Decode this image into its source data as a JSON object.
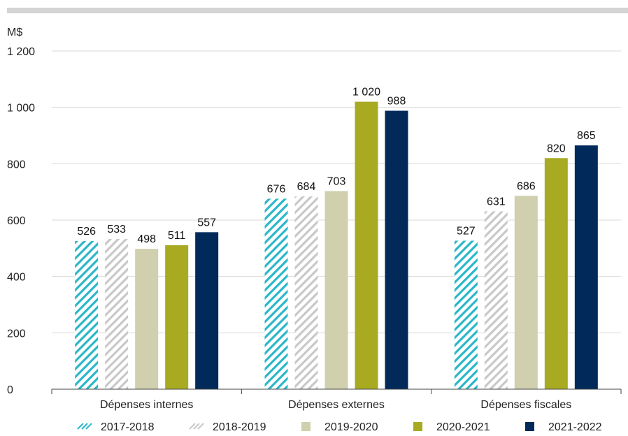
{
  "chart_data": {
    "type": "bar",
    "ylabel": "M$",
    "ylim": [
      0,
      1200
    ],
    "yticks": [
      0,
      200,
      400,
      600,
      800,
      1000,
      1200
    ],
    "ytick_labels": [
      "0",
      "200",
      "400",
      "600",
      "800",
      "1 000",
      "1 200"
    ],
    "grid": true,
    "legend_position": "bottom",
    "categories": [
      "Dépenses internes",
      "Dépenses externes",
      "Dépenses fiscales"
    ],
    "series": [
      {
        "name": "2017-2018",
        "values": [
          526,
          676,
          527
        ],
        "labels": [
          "526",
          "676",
          "527"
        ],
        "color": "#2ab7c8",
        "pattern": "hatch"
      },
      {
        "name": "2018-2019",
        "values": [
          533,
          684,
          631
        ],
        "labels": [
          "533",
          "684",
          "631"
        ],
        "color": "#c8c8c8",
        "pattern": "hatch"
      },
      {
        "name": "2019-2020",
        "values": [
          498,
          703,
          686
        ],
        "labels": [
          "498",
          "703",
          "686"
        ],
        "color": "#d0cfae",
        "pattern": "solid"
      },
      {
        "name": "2020-2021",
        "values": [
          511,
          1020,
          820
        ],
        "labels": [
          "511",
          "1 020",
          "820"
        ],
        "color": "#a8ab22",
        "pattern": "solid"
      },
      {
        "name": "2021-2022",
        "values": [
          557,
          988,
          865
        ],
        "labels": [
          "557",
          "988",
          "865"
        ],
        "color": "#012a5a",
        "pattern": "solid"
      }
    ]
  },
  "colors": {
    "top_bar": "#d4d4d4",
    "grid": "#d8d8d8",
    "axis": "#444444"
  }
}
